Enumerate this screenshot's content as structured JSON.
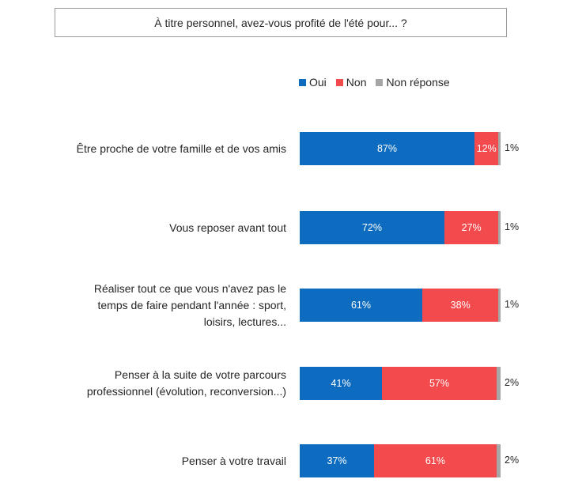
{
  "chart_data": {
    "type": "bar",
    "orientation": "horizontal",
    "stacked": true,
    "title": "À titre personnel, avez-vous profité de l'été pour... ?",
    "legend": [
      {
        "name": "Oui",
        "color": "#0d6cbf"
      },
      {
        "name": "Non",
        "color": "#f34a4d"
      },
      {
        "name": "Non réponse",
        "color": "#a6a6a6"
      }
    ],
    "categories": [
      [
        "Être proche de votre famille et de vos amis"
      ],
      [
        "Vous reposer avant tout"
      ],
      [
        "Réaliser tout ce que vous n'avez pas le",
        "temps de faire pendant l'année : sport,",
        "loisirs, lectures..."
      ],
      [
        "Penser à la suite de votre parcours",
        "professionnel (évolution, reconversion...)"
      ],
      [
        "Penser à votre travail"
      ]
    ],
    "series": [
      {
        "name": "Oui",
        "values": [
          87,
          72,
          61,
          41,
          37
        ]
      },
      {
        "name": "Non",
        "values": [
          12,
          27,
          38,
          57,
          61
        ]
      },
      {
        "name": "Non réponse",
        "values": [
          1,
          1,
          1,
          2,
          2
        ]
      }
    ],
    "value_suffix": "%",
    "xlim": [
      0,
      100
    ]
  }
}
